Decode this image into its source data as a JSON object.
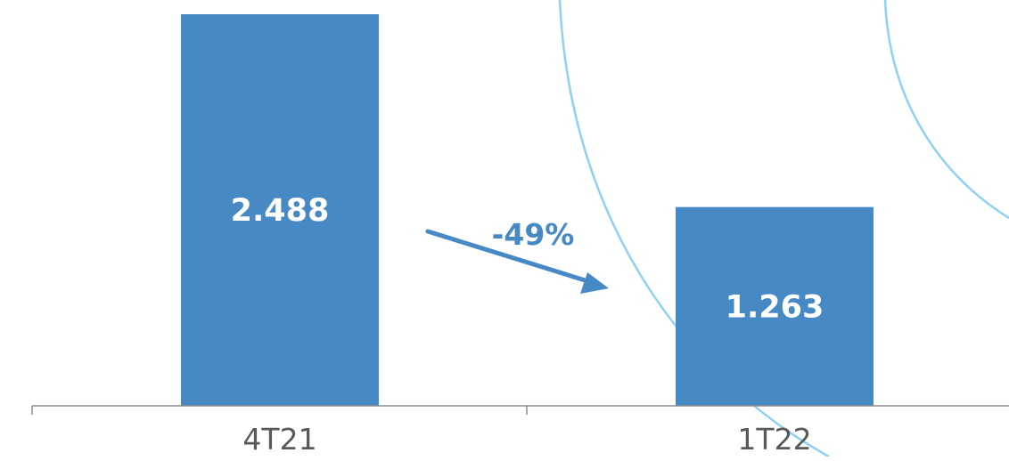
{
  "chart_data": {
    "type": "bar",
    "categories": [
      "4T21",
      "1T22"
    ],
    "values": [
      2488,
      1263
    ],
    "data_labels": [
      "2.488",
      "1.263"
    ],
    "ylim": [
      0,
      2488
    ],
    "grid": false,
    "legend": "none",
    "annotation": {
      "text": "-49%"
    }
  },
  "colors": {
    "bar": "#4689C4",
    "bar_label": "#FFFFFF",
    "annotation": "#4689C4",
    "axis": "#8C8C8C",
    "tick_label": "#595959",
    "decor_curve": "#8FD0F5"
  }
}
